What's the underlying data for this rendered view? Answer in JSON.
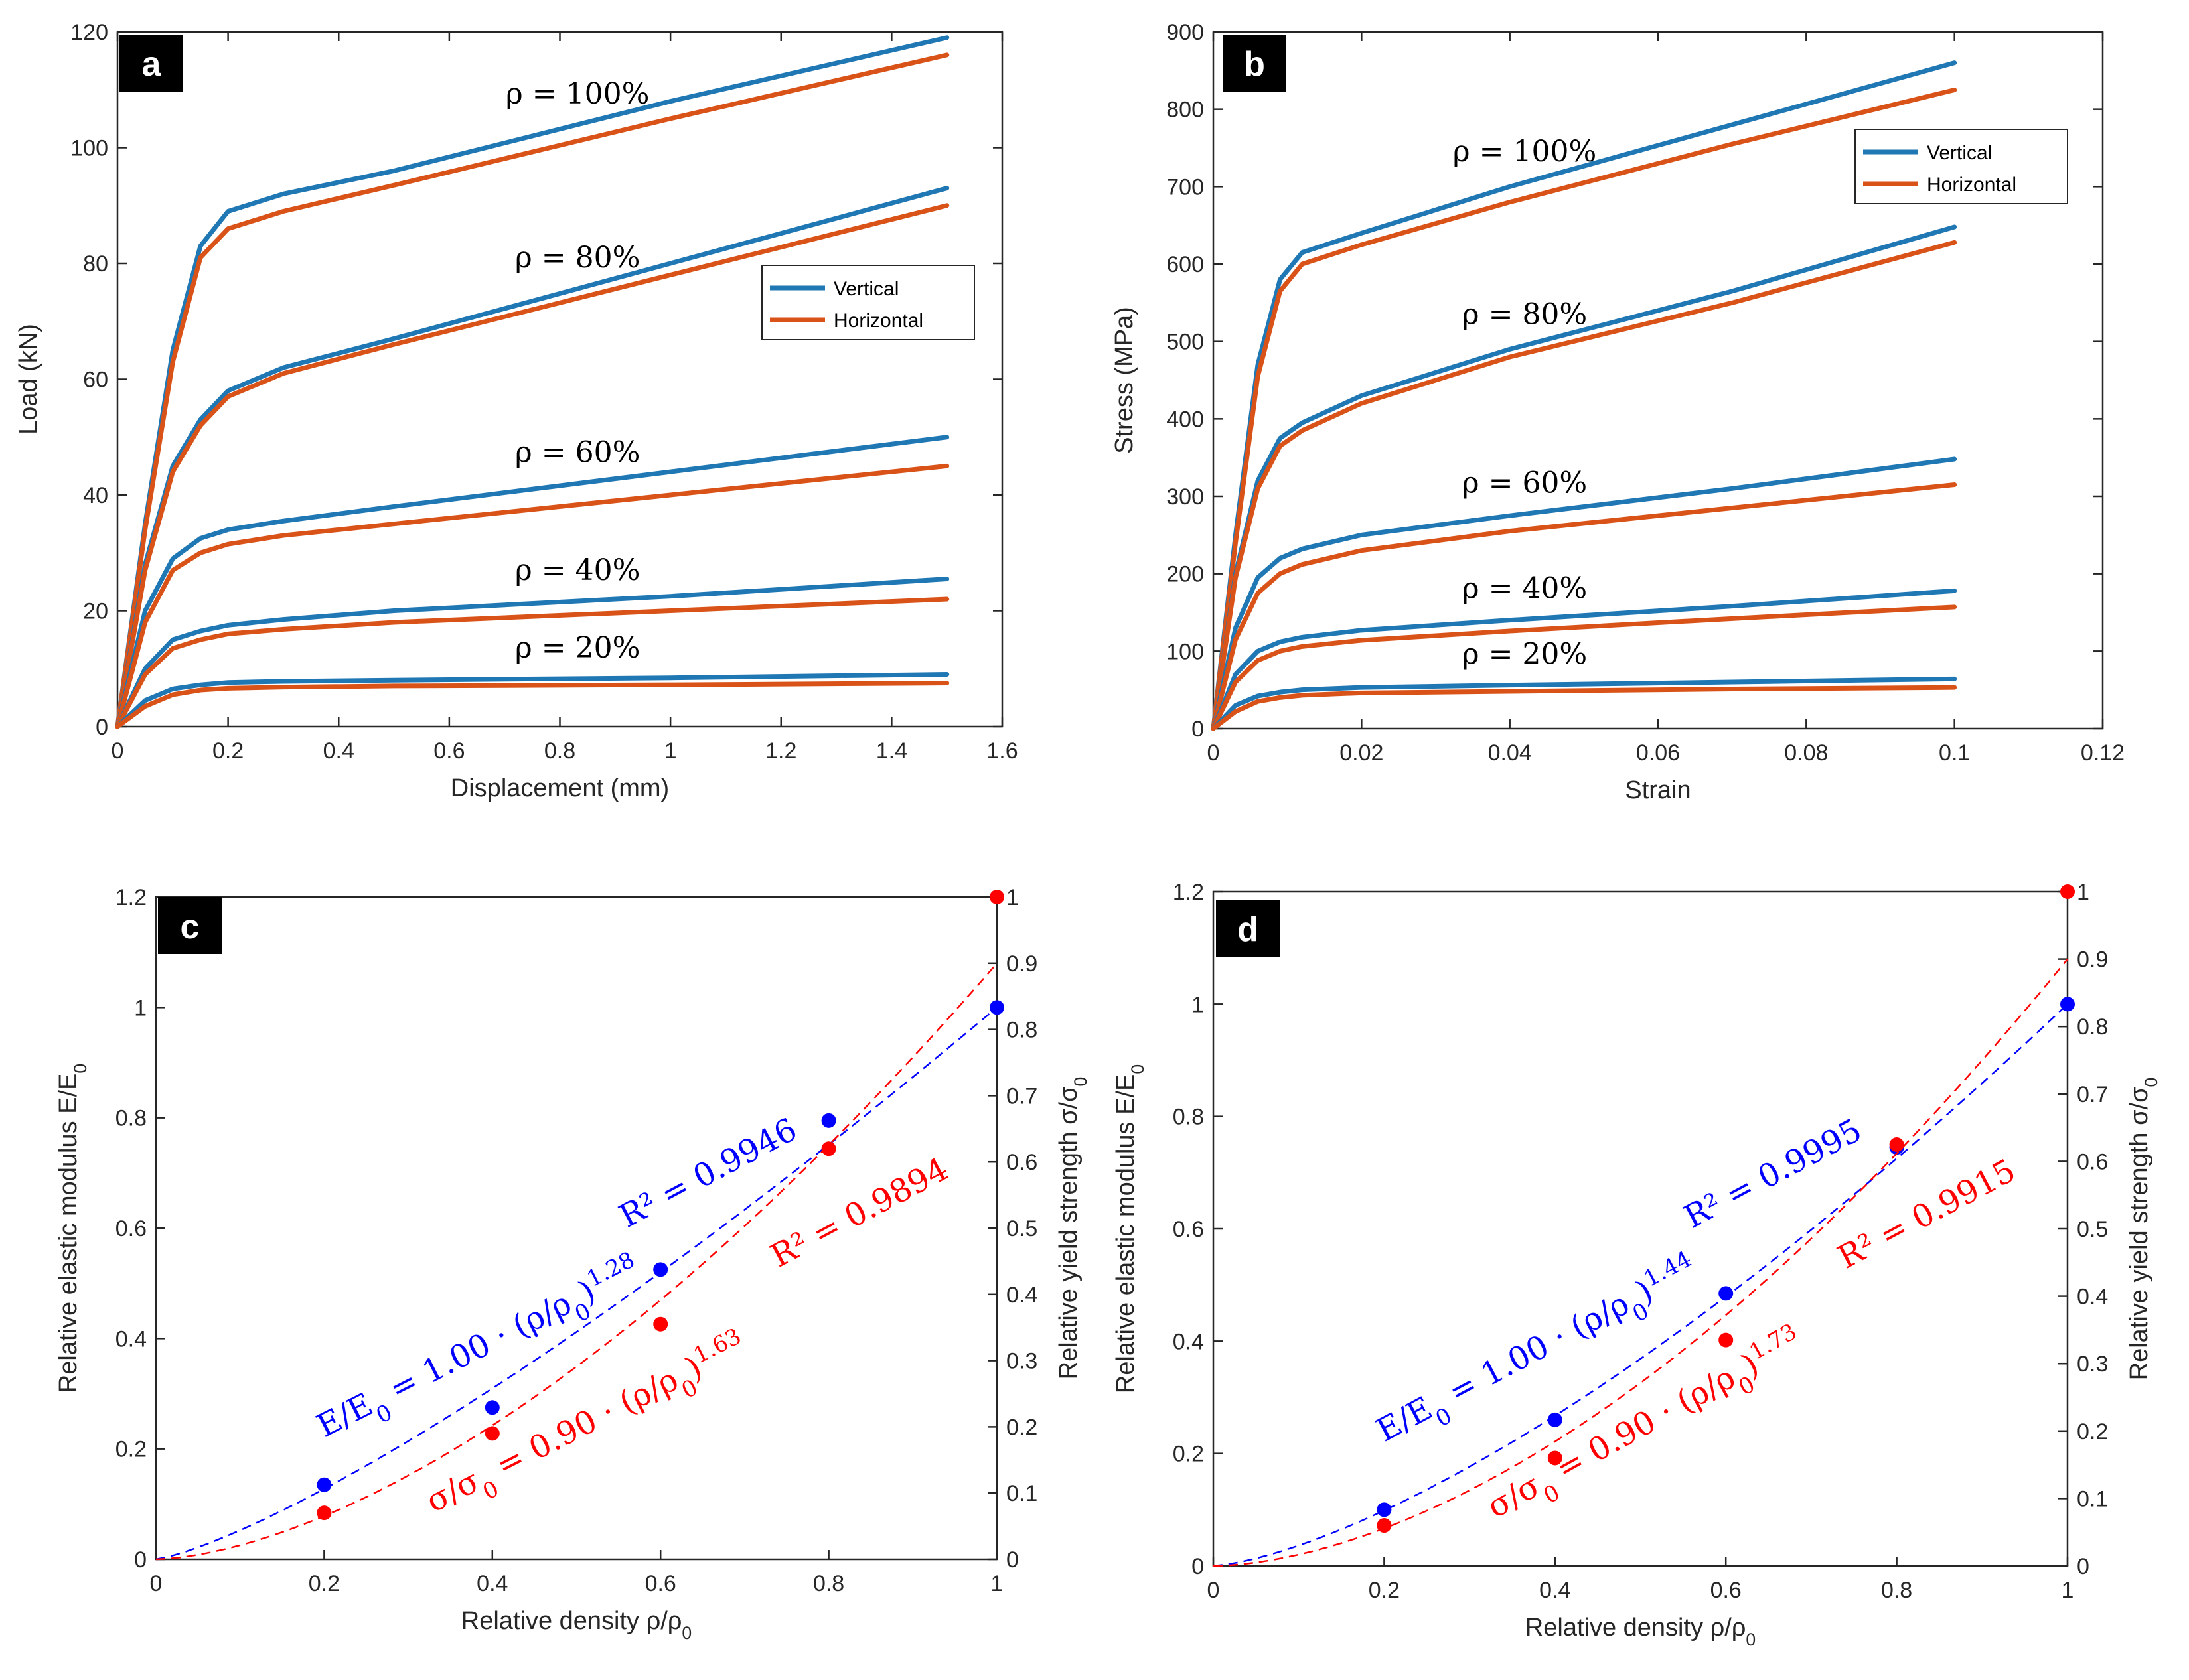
{
  "chart_data": [
    {
      "panel": "a",
      "type": "line",
      "xlabel": "Displacement (mm)",
      "ylabel": "Load (kN)",
      "xlim": [
        0,
        1.6
      ],
      "ylim": [
        0,
        120
      ],
      "xticks": [
        0,
        0.2,
        0.4,
        0.6,
        0.8,
        1,
        1.2,
        1.4,
        1.6
      ],
      "yticks": [
        0,
        20,
        40,
        60,
        80,
        100,
        120
      ],
      "legend": [
        "Vertical",
        "Horizontal"
      ],
      "legend_position": "right-middle",
      "colors": {
        "Vertical": "#1f77b4",
        "Horizontal": "#d95319"
      },
      "groups": [
        {
          "label": "ρ = 100%",
          "Vertical": {
            "x": [
              0,
              0.05,
              0.1,
              0.15,
              0.2,
              0.3,
              0.5,
              1.0,
              1.5
            ],
            "y": [
              0,
              35,
              65,
              83,
              89,
              92,
              96,
              108,
              119
            ]
          },
          "Horizontal": {
            "x": [
              0,
              0.05,
              0.1,
              0.15,
              0.2,
              0.3,
              0.5,
              1.0,
              1.5
            ],
            "y": [
              0,
              34,
              63,
              81,
              86,
              89,
              93.5,
              105,
              116
            ]
          }
        },
        {
          "label": "ρ = 80%",
          "Vertical": {
            "x": [
              0,
              0.05,
              0.1,
              0.15,
              0.2,
              0.3,
              0.5,
              1.0,
              1.5
            ],
            "y": [
              0,
              28,
              45,
              53,
              58,
              62,
              67,
              80,
              93
            ]
          },
          "Horizontal": {
            "x": [
              0,
              0.05,
              0.1,
              0.15,
              0.2,
              0.3,
              0.5,
              1.0,
              1.5
            ],
            "y": [
              0,
              27,
              44,
              52,
              57,
              61,
              66,
              78,
              90
            ]
          }
        },
        {
          "label": "ρ = 60%",
          "Vertical": {
            "x": [
              0,
              0.05,
              0.1,
              0.15,
              0.2,
              0.3,
              0.5,
              1.0,
              1.5
            ],
            "y": [
              0,
              20,
              29,
              32.5,
              34,
              35.5,
              38,
              44,
              50
            ]
          },
          "Horizontal": {
            "x": [
              0,
              0.05,
              0.1,
              0.15,
              0.2,
              0.3,
              0.5,
              1.0,
              1.5
            ],
            "y": [
              0,
              18,
              27,
              30,
              31.5,
              33,
              35,
              40,
              45
            ]
          }
        },
        {
          "label": "ρ = 40%",
          "Vertical": {
            "x": [
              0,
              0.05,
              0.1,
              0.15,
              0.2,
              0.3,
              0.5,
              1.0,
              1.5
            ],
            "y": [
              0,
              10,
              15,
              16.5,
              17.5,
              18.5,
              20,
              22.5,
              25.5
            ]
          },
          "Horizontal": {
            "x": [
              0,
              0.05,
              0.1,
              0.15,
              0.2,
              0.3,
              0.5,
              1.0,
              1.5
            ],
            "y": [
              0,
              9,
              13.5,
              15,
              16,
              16.8,
              18,
              20,
              22
            ]
          }
        },
        {
          "label": "ρ = 20%",
          "Vertical": {
            "x": [
              0,
              0.05,
              0.1,
              0.15,
              0.2,
              0.3,
              0.5,
              1.0,
              1.5
            ],
            "y": [
              0,
              4.5,
              6.5,
              7.2,
              7.6,
              7.8,
              8,
              8.4,
              9
            ]
          },
          "Horizontal": {
            "x": [
              0,
              0.05,
              0.1,
              0.15,
              0.2,
              0.3,
              0.5,
              1.0,
              1.5
            ],
            "y": [
              0,
              3.5,
              5.5,
              6.3,
              6.6,
              6.8,
              7,
              7.2,
              7.5
            ]
          }
        }
      ]
    },
    {
      "panel": "b",
      "type": "line",
      "xlabel": "Strain",
      "ylabel": "Stress (MPa)",
      "xlim": [
        0,
        0.12
      ],
      "ylim": [
        0,
        900
      ],
      "xticks": [
        0,
        0.02,
        0.04,
        0.06,
        0.08,
        0.1,
        0.12
      ],
      "yticks": [
        0,
        100,
        200,
        300,
        400,
        500,
        600,
        700,
        800,
        900
      ],
      "legend": [
        "Vertical",
        "Horizontal"
      ],
      "legend_position": "top-right",
      "colors": {
        "Vertical": "#1f77b4",
        "Horizontal": "#d95319"
      },
      "groups": [
        {
          "label": "ρ = 100%",
          "Vertical": {
            "x": [
              0,
              0.003,
              0.006,
              0.009,
              0.012,
              0.02,
              0.04,
              0.07,
              0.1
            ],
            "y": [
              0,
              250,
              470,
              580,
              615,
              640,
              700,
              780,
              860
            ]
          },
          "Horizontal": {
            "x": [
              0,
              0.003,
              0.006,
              0.009,
              0.012,
              0.02,
              0.04,
              0.07,
              0.1
            ],
            "y": [
              0,
              240,
              455,
              565,
              600,
              625,
              680,
              755,
              825
            ]
          }
        },
        {
          "label": "ρ = 80%",
          "Vertical": {
            "x": [
              0,
              0.003,
              0.006,
              0.009,
              0.012,
              0.02,
              0.04,
              0.07,
              0.1
            ],
            "y": [
              0,
              200,
              320,
              375,
              395,
              430,
              490,
              565,
              648
            ]
          },
          "Horizontal": {
            "x": [
              0,
              0.003,
              0.006,
              0.009,
              0.012,
              0.02,
              0.04,
              0.07,
              0.1
            ],
            "y": [
              0,
              195,
              310,
              365,
              385,
              420,
              480,
              550,
              628
            ]
          }
        },
        {
          "label": "ρ = 60%",
          "Vertical": {
            "x": [
              0,
              0.003,
              0.006,
              0.009,
              0.012,
              0.02,
              0.04,
              0.07,
              0.1
            ],
            "y": [
              0,
              130,
              195,
              220,
              232,
              250,
              275,
              310,
              348
            ]
          },
          "Horizontal": {
            "x": [
              0,
              0.003,
              0.006,
              0.009,
              0.012,
              0.02,
              0.04,
              0.07,
              0.1
            ],
            "y": [
              0,
              115,
              175,
              200,
              212,
              230,
              255,
              285,
              315
            ]
          }
        },
        {
          "label": "ρ = 40%",
          "Vertical": {
            "x": [
              0,
              0.003,
              0.006,
              0.009,
              0.012,
              0.02,
              0.04,
              0.07,
              0.1
            ],
            "y": [
              0,
              70,
              100,
              112,
              118,
              127,
              140,
              158,
              178
            ]
          },
          "Horizontal": {
            "x": [
              0,
              0.003,
              0.006,
              0.009,
              0.012,
              0.02,
              0.04,
              0.07,
              0.1
            ],
            "y": [
              0,
              60,
              88,
              100,
              106,
              114,
              126,
              142,
              157
            ]
          }
        },
        {
          "label": "ρ = 20%",
          "Vertical": {
            "x": [
              0,
              0.003,
              0.006,
              0.009,
              0.012,
              0.02,
              0.04,
              0.07,
              0.1
            ],
            "y": [
              0,
              30,
              42,
              47,
              50,
              53,
              56,
              60,
              64
            ]
          },
          "Horizontal": {
            "x": [
              0,
              0.003,
              0.006,
              0.009,
              0.012,
              0.02,
              0.04,
              0.07,
              0.1
            ],
            "y": [
              0,
              22,
              35,
              40,
              43,
              46,
              48,
              51,
              53
            ]
          }
        }
      ]
    },
    {
      "panel": "c",
      "type": "scatter",
      "xlabel": "Relative density ρ/ρ0",
      "ylabel": "Relative elastic modulus E/E0",
      "y2label": "Relative yield strength σ/σ0",
      "xlim": [
        0,
        1
      ],
      "ylim": [
        0,
        1.2
      ],
      "y2lim": [
        0,
        1
      ],
      "xticks": [
        0,
        0.2,
        0.4,
        0.6,
        0.8,
        1
      ],
      "yticks": [
        0,
        0.2,
        0.4,
        0.6,
        0.8,
        1,
        1.2
      ],
      "y2ticks": [
        0,
        0.1,
        0.2,
        0.3,
        0.4,
        0.5,
        0.6,
        0.7,
        0.8,
        0.9,
        1
      ],
      "series": [
        {
          "name": "E/E0",
          "axis": "left",
          "color": "#0000ff",
          "x": [
            0.2,
            0.4,
            0.6,
            0.8,
            1.0
          ],
          "y": [
            0.135,
            0.275,
            0.525,
            0.795,
            1.0
          ],
          "fit": {
            "a": 1.0,
            "b": 1.28
          },
          "fit_label": "E/E0 = 1.00 · (ρ/ρ0)^1.28",
          "r2_label": "R² = 0.9946"
        },
        {
          "name": "σ/σ0",
          "axis": "right",
          "color": "#ff0000",
          "x": [
            0.2,
            0.4,
            0.6,
            0.8,
            1.0
          ],
          "y": [
            0.07,
            0.19,
            0.355,
            0.62,
            1.0
          ],
          "fit": {
            "a": 0.9,
            "b": 1.63
          },
          "fit_label": "σ/σ0 = 0.90 · (ρ/ρ0)^1.63",
          "r2_label": "R² = 0.9894"
        }
      ]
    },
    {
      "panel": "d",
      "type": "scatter",
      "xlabel": "Relative density ρ/ρ0",
      "ylabel": "Relative elastic modulus E/E0",
      "y2label": "Relative yield strength σ/σ0",
      "xlim": [
        0,
        1
      ],
      "ylim": [
        0,
        1.2
      ],
      "y2lim": [
        0,
        1
      ],
      "xticks": [
        0,
        0.2,
        0.4,
        0.6,
        0.8,
        1
      ],
      "yticks": [
        0,
        0.2,
        0.4,
        0.6,
        0.8,
        1,
        1.2
      ],
      "y2ticks": [
        0,
        0.1,
        0.2,
        0.3,
        0.4,
        0.5,
        0.6,
        0.7,
        0.8,
        0.9,
        1
      ],
      "series": [
        {
          "name": "E/E0",
          "axis": "left",
          "color": "#0000ff",
          "x": [
            0.2,
            0.4,
            0.6,
            0.8,
            1.0
          ],
          "y": [
            0.1,
            0.26,
            0.485,
            0.745,
            1.0
          ],
          "fit": {
            "a": 1.0,
            "b": 1.44
          },
          "fit_label": "E/E0 = 1.00 · (ρ/ρ0)^1.44",
          "r2_label": "R² = 0.9995"
        },
        {
          "name": "σ/σ0",
          "axis": "right",
          "color": "#ff0000",
          "x": [
            0.2,
            0.4,
            0.6,
            0.8,
            1.0
          ],
          "y": [
            0.06,
            0.16,
            0.335,
            0.625,
            1.0
          ],
          "fit": {
            "a": 0.9,
            "b": 1.73
          },
          "fit_label": "σ/σ0 = 0.90 · (ρ/ρ0)^1.73",
          "r2_label": "R² = 0.9915"
        }
      ]
    }
  ]
}
